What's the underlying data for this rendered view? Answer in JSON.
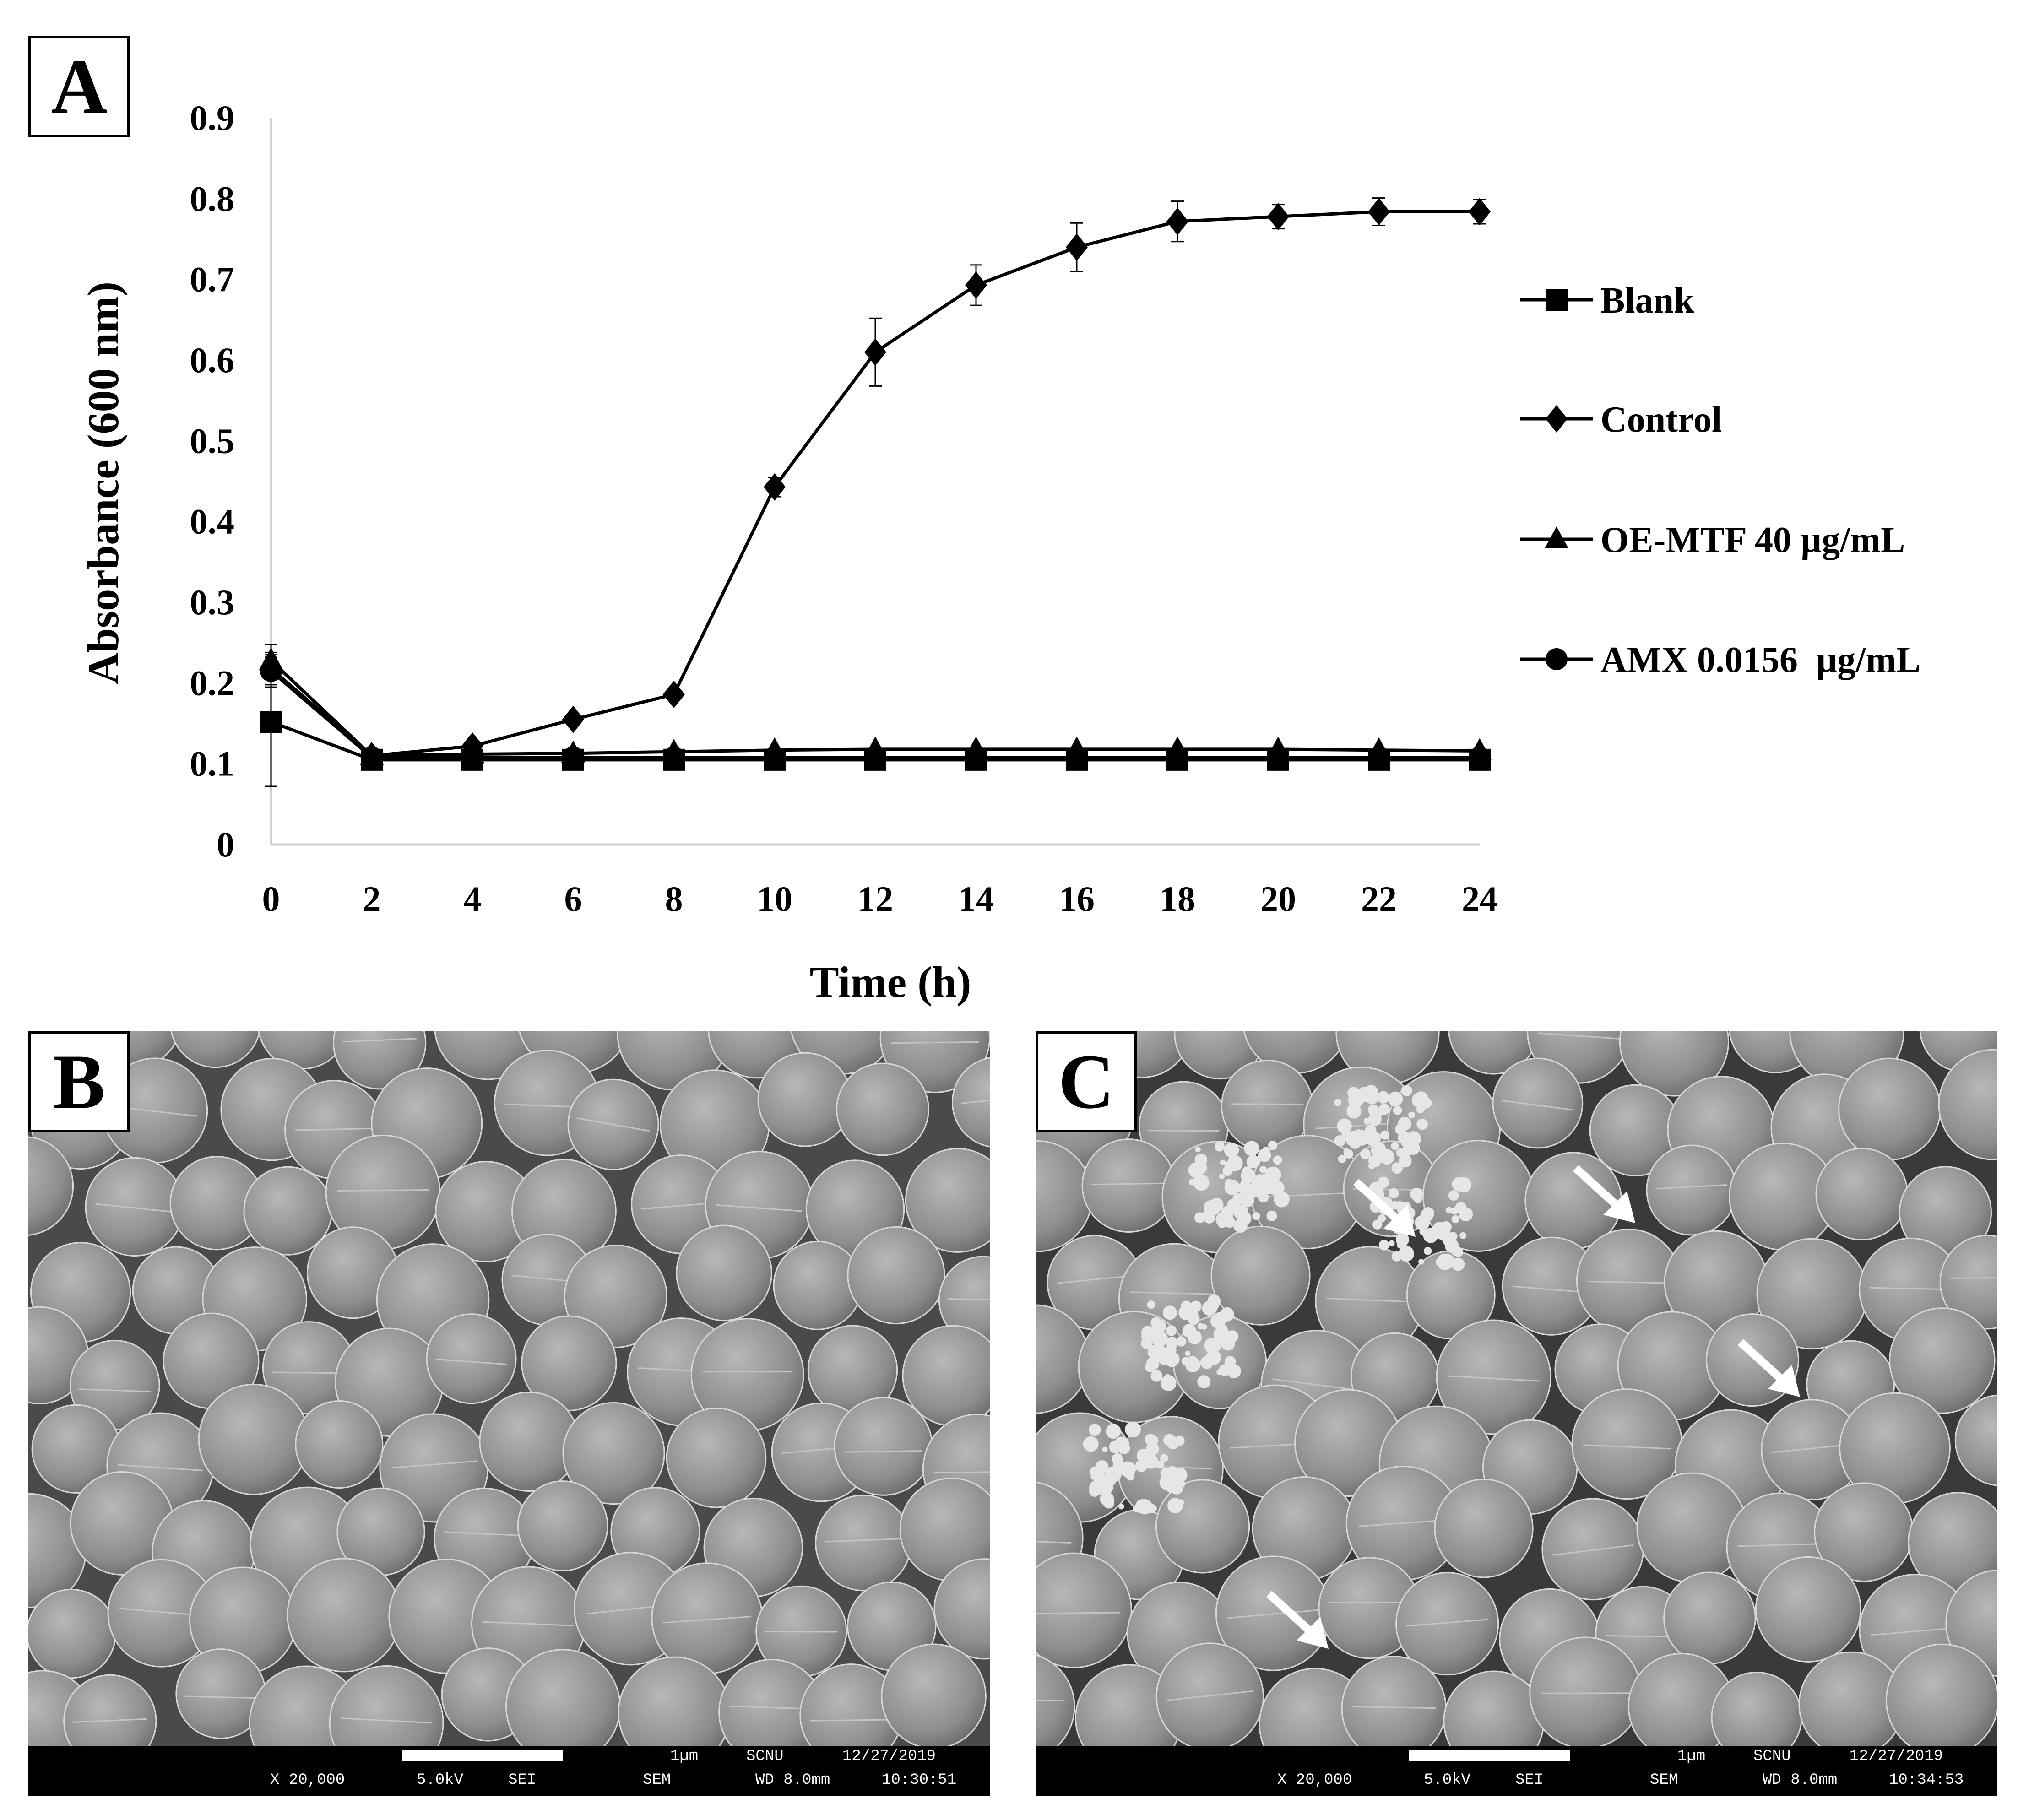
{
  "panels": {
    "a_label": "A",
    "b_label": "B",
    "c_label": "C"
  },
  "chart_data": {
    "type": "line",
    "xlabel": "Time (h)",
    "ylabel": "Absorbance (600 nm)",
    "x": [
      0,
      2,
      4,
      6,
      8,
      10,
      12,
      14,
      16,
      18,
      20,
      22,
      24
    ],
    "xticks": [
      "0",
      "2",
      "4",
      "6",
      "8",
      "10",
      "12",
      "14",
      "16",
      "18",
      "20",
      "22",
      "24"
    ],
    "yticks": [
      "0",
      "0.1",
      "0.2",
      "0.3",
      "0.4",
      "0.5",
      "0.6",
      "0.7",
      "0.8",
      "0.9"
    ],
    "ylim": [
      0,
      0.9
    ],
    "grid": false,
    "legend_position": "right",
    "series": [
      {
        "name": "Blank",
        "marker": "square",
        "values": [
          0.152,
          0.105,
          0.105,
          0.105,
          0.105,
          0.105,
          0.105,
          0.105,
          0.105,
          0.105,
          0.105,
          0.105,
          0.105
        ],
        "errors": [
          0.08,
          0.003,
          0.003,
          0.003,
          0.003,
          0.003,
          0.003,
          0.003,
          0.003,
          0.003,
          0.003,
          0.003,
          0.003
        ]
      },
      {
        "name": "Control",
        "marker": "diamond",
        "values": [
          0.218,
          0.11,
          0.122,
          0.155,
          0.186,
          0.443,
          0.61,
          0.693,
          0.74,
          0.772,
          0.778,
          0.784,
          0.784
        ],
        "errors": [
          0.02,
          0.005,
          0.005,
          0.005,
          0.005,
          0.012,
          0.042,
          0.025,
          0.03,
          0.025,
          0.015,
          0.017,
          0.015
        ]
      },
      {
        "name": "OE-MTF 40 µg/mL",
        "marker": "triangle",
        "values": [
          0.228,
          0.11,
          0.112,
          0.113,
          0.115,
          0.117,
          0.118,
          0.118,
          0.118,
          0.118,
          0.118,
          0.117,
          0.116
        ],
        "errors": [
          0.02,
          0.003,
          0.003,
          0.003,
          0.003,
          0.003,
          0.003,
          0.003,
          0.003,
          0.003,
          0.003,
          0.003,
          0.003
        ]
      },
      {
        "name": "AMX 0.0156  µg/mL",
        "marker": "circle",
        "values": [
          0.215,
          0.108,
          0.108,
          0.108,
          0.108,
          0.108,
          0.108,
          0.108,
          0.108,
          0.108,
          0.108,
          0.108,
          0.108
        ],
        "errors": [
          0.02,
          0.003,
          0.003,
          0.003,
          0.003,
          0.003,
          0.003,
          0.003,
          0.003,
          0.003,
          0.003,
          0.003,
          0.003
        ]
      }
    ]
  },
  "sem_b": {
    "scale_text": "1µm",
    "inst": "SCNU",
    "date": "12/27/2019",
    "mag": "X 20,000",
    "kv": "5.0kV",
    "detector": "SEI",
    "mode": "SEM",
    "wd": "WD 8.0mm",
    "time": "10:30:51"
  },
  "sem_c": {
    "scale_text": "1µm",
    "inst": "SCNU",
    "date": "12/27/2019",
    "mag": "X 20,000",
    "kv": "5.0kV",
    "detector": "SEI",
    "mode": "SEM",
    "wd": "WD 8.0mm",
    "time": "10:34:53"
  }
}
